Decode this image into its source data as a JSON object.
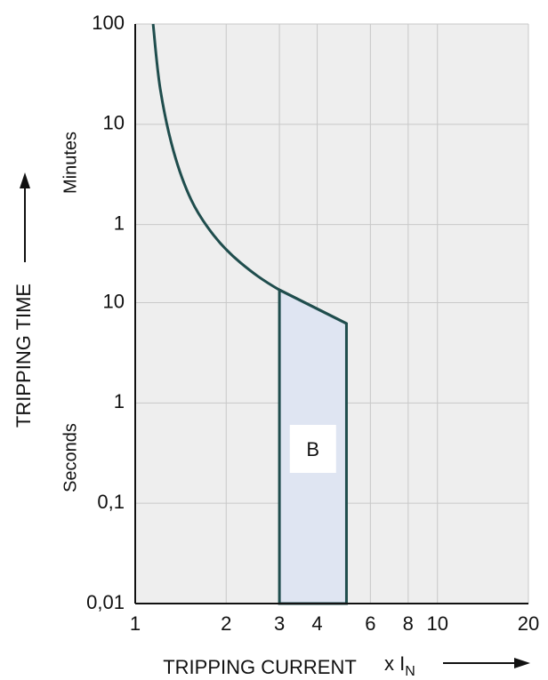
{
  "chart_data": {
    "type": "line",
    "x_label": "TRIPPING CURRENT",
    "x_unit": "x I",
    "x_unit_sub": "N",
    "y_label": "TRIPPING TIME",
    "y_section_upper": "Minutes",
    "y_section_lower": "Seconds",
    "log_x": true,
    "log_y": true,
    "grid": true,
    "xlim": [
      1,
      20
    ],
    "xticks": [
      1,
      2,
      3,
      4,
      6,
      8,
      10,
      20
    ],
    "ylim": [
      0.01,
      6000
    ],
    "yticks": [
      {
        "value": 6000,
        "label": "100"
      },
      {
        "value": 600,
        "label": "10"
      },
      {
        "value": 60,
        "label": "1"
      },
      10,
      1,
      {
        "value": 0.1,
        "label": "0,1"
      },
      {
        "value": 0.01,
        "label": "0,01"
      }
    ],
    "series": [
      {
        "color": "#1f4d4d",
        "x": [
          1.146,
          1.21,
          1.339,
          1.534,
          1.818,
          2.23,
          3,
          5
        ],
        "values": [
          6000,
          1350,
          324,
          105,
          47,
          25,
          13.4,
          6.2
        ]
      }
    ],
    "band": {
      "label": "B",
      "color": "#dfe5f2",
      "x": [
        3,
        5
      ],
      "upper": [
        13.4,
        6.2
      ],
      "lower": [
        0.01,
        0.01
      ]
    }
  }
}
